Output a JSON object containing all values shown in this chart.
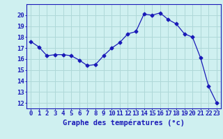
{
  "hours": [
    0,
    1,
    2,
    3,
    4,
    5,
    6,
    7,
    8,
    9,
    10,
    11,
    12,
    13,
    14,
    15,
    16,
    17,
    18,
    19,
    20,
    21,
    22,
    23
  ],
  "temps": [
    17.6,
    17.1,
    16.3,
    16.4,
    16.4,
    16.3,
    15.9,
    15.4,
    15.5,
    16.3,
    17.0,
    17.5,
    18.3,
    18.5,
    20.1,
    20.0,
    20.2,
    19.6,
    19.2,
    18.3,
    18.0,
    16.1,
    13.5,
    12.0
  ],
  "line_color": "#1a1ab8",
  "marker": "D",
  "marker_size": 2.5,
  "bg_color": "#cff0f0",
  "grid_color": "#aed8d8",
  "axis_color": "#1a1ab8",
  "label_color": "#1a1ab8",
  "xlabel": "Graphe des températures (°c)",
  "ylim_min": 11.5,
  "ylim_max": 21.0,
  "yticks": [
    12,
    13,
    14,
    15,
    16,
    17,
    18,
    19,
    20
  ],
  "tick_fontsize": 6.5,
  "xlabel_fontsize": 7.5
}
